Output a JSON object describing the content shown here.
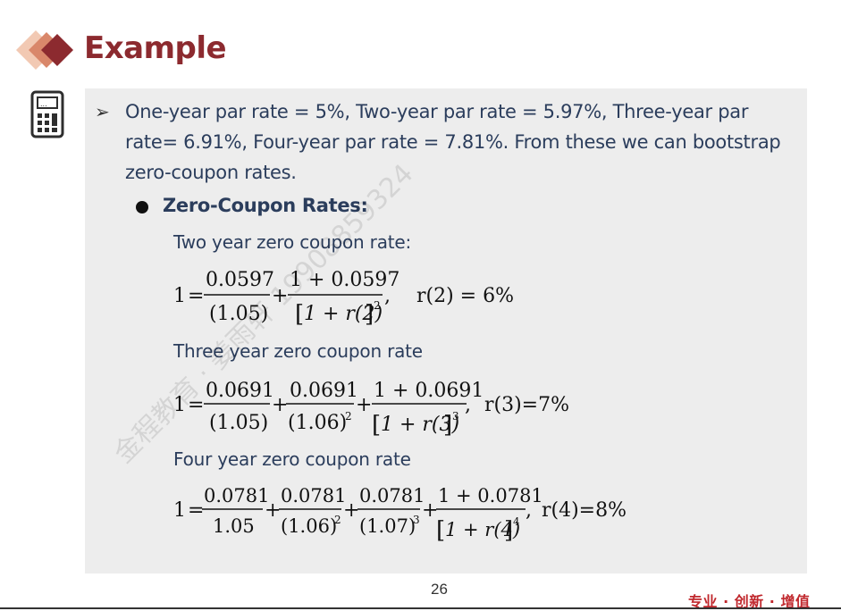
{
  "slide": {
    "title": "Example",
    "page_number": "26",
    "slogan": "专业 · 创新 · 增值",
    "watermark": "金程教育 · 姜雨轩 19908859324",
    "accent_color": "#8c2a2f",
    "panel_color": "#ededed",
    "text_color": "#2b3d5c",
    "slogan_color": "#c0282d"
  },
  "content": {
    "intro_text": "One-year par rate = 5%, Two-year par rate = 5.97%, Three-year par rate= 6.91%, Four-year par rate = 7.81%. From these we can bootstrap zero-coupon rates.",
    "sub_heading": "Zero-Coupon Rates:",
    "two_year_label": "Two year zero coupon rate:",
    "three_year_label": "Three year zero coupon rate",
    "four_year_label": "Four year zero coupon rate"
  },
  "formulas": {
    "two_year": {
      "lhs": "1",
      "t1_num": "0.0597",
      "t1_den": "(1.05)",
      "t2_num": "1 + 0.0597",
      "t2_den": "1 + r(2)",
      "t2_exp": "2",
      "result": "r(2) = 6%"
    },
    "three_year": {
      "lhs": "1",
      "t1_num": "0.0691",
      "t1_den": "(1.05)",
      "t2_num": "0.0691",
      "t2_den": "(1.06)",
      "t2_exp": "2",
      "t3_num": "1 + 0.0691",
      "t3_den": "1 + r(3)",
      "t3_exp": "3",
      "result": "r(3)=7%"
    },
    "four_year": {
      "lhs": "1",
      "t1_num": "0.0781",
      "t1_den": "1.05",
      "t2_num": "0.0781",
      "t2_den": "(1.06)",
      "t2_exp": "2",
      "t3_num": "0.0781",
      "t3_den": "(1.07)",
      "t3_exp": "3",
      "t4_num": "1 + 0.0781",
      "t4_den": "1 + r(4)",
      "t4_exp": "4",
      "result": "r(4)=8%"
    }
  },
  "icons": {
    "header_decoration": "diamond-icon",
    "calculator": "calculator-icon",
    "bullet": "arrow-bullet-icon"
  }
}
